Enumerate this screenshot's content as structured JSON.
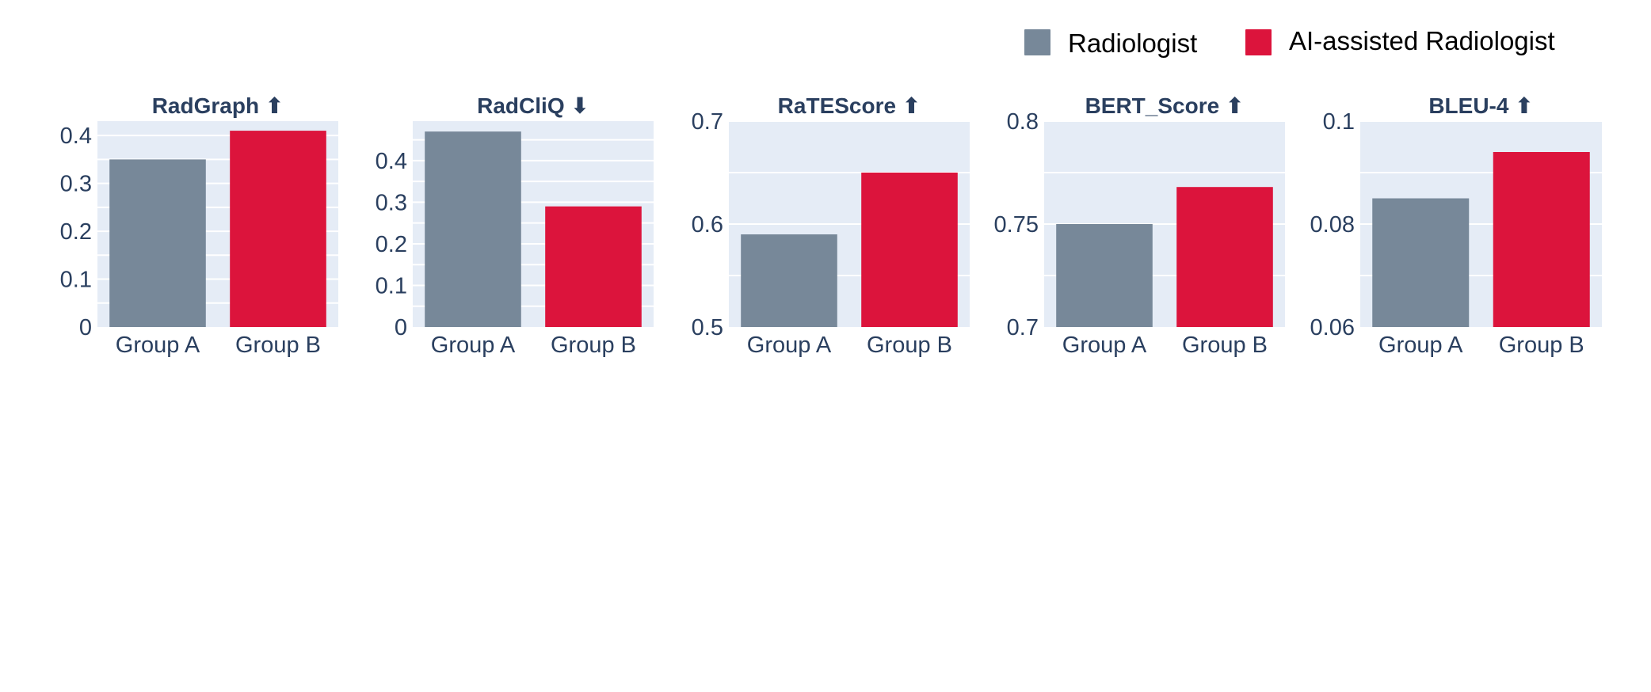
{
  "legend": {
    "items": [
      {
        "label": "Radiologist",
        "color": "#778899"
      },
      {
        "label": "AI-assisted Radiologist",
        "color": "#dc143c"
      }
    ]
  },
  "chart_data": [
    {
      "type": "bar",
      "title": "RadGraph ⬆",
      "categories": [
        "Group A",
        "Group B"
      ],
      "series": [
        {
          "name": "Radiologist",
          "values": [
            0.35,
            null
          ]
        },
        {
          "name": "AI-assisted Radiologist",
          "values": [
            null,
            0.41
          ]
        }
      ],
      "ylim": [
        0,
        0.43
      ],
      "yticks": [
        0,
        0.1,
        0.2,
        0.3,
        0.4
      ],
      "ytick_labels": [
        "0",
        "0.1",
        "0.2",
        "0.3",
        "0.4"
      ],
      "grid": true
    },
    {
      "type": "bar",
      "title": "RadCliQ ⬇",
      "categories": [
        "Group A",
        "Group B"
      ],
      "series": [
        {
          "name": "Radiologist",
          "values": [
            0.47,
            null
          ]
        },
        {
          "name": "AI-assisted Radiologist",
          "values": [
            null,
            0.29
          ]
        }
      ],
      "ylim": [
        0,
        0.495
      ],
      "yticks": [
        0,
        0.1,
        0.2,
        0.3,
        0.4
      ],
      "ytick_labels": [
        "0",
        "0.1",
        "0.2",
        "0.3",
        "0.4"
      ],
      "grid": true
    },
    {
      "type": "bar",
      "title": "RaTEScore ⬆",
      "categories": [
        "Group A",
        "Group B"
      ],
      "series": [
        {
          "name": "Radiologist",
          "values": [
            0.59,
            null
          ]
        },
        {
          "name": "AI-assisted Radiologist",
          "values": [
            null,
            0.65
          ]
        }
      ],
      "ylim": [
        0.5,
        0.7
      ],
      "yticks": [
        0.5,
        0.6,
        0.7
      ],
      "ytick_labels": [
        "0.5",
        "0.6",
        "0.7"
      ],
      "grid": true
    },
    {
      "type": "bar",
      "title": "BERT_Score ⬆",
      "categories": [
        "Group A",
        "Group B"
      ],
      "series": [
        {
          "name": "Radiologist",
          "values": [
            0.75,
            null
          ]
        },
        {
          "name": "AI-assisted Radiologist",
          "values": [
            null,
            0.768
          ]
        }
      ],
      "ylim": [
        0.7,
        0.8
      ],
      "yticks": [
        0.7,
        0.75,
        0.8
      ],
      "ytick_labels": [
        "0.7",
        "0.75",
        "0.8"
      ],
      "grid": true
    },
    {
      "type": "bar",
      "title": "BLEU-4 ⬆",
      "categories": [
        "Group A",
        "Group B"
      ],
      "series": [
        {
          "name": "Radiologist",
          "values": [
            0.085,
            null
          ]
        },
        {
          "name": "AI-assisted Radiologist",
          "values": [
            null,
            0.094
          ]
        }
      ],
      "ylim": [
        0.06,
        0.1
      ],
      "yticks": [
        0.06,
        0.08,
        0.1
      ],
      "ytick_labels": [
        "0.06",
        "0.08",
        "0.1"
      ],
      "grid": true
    }
  ]
}
